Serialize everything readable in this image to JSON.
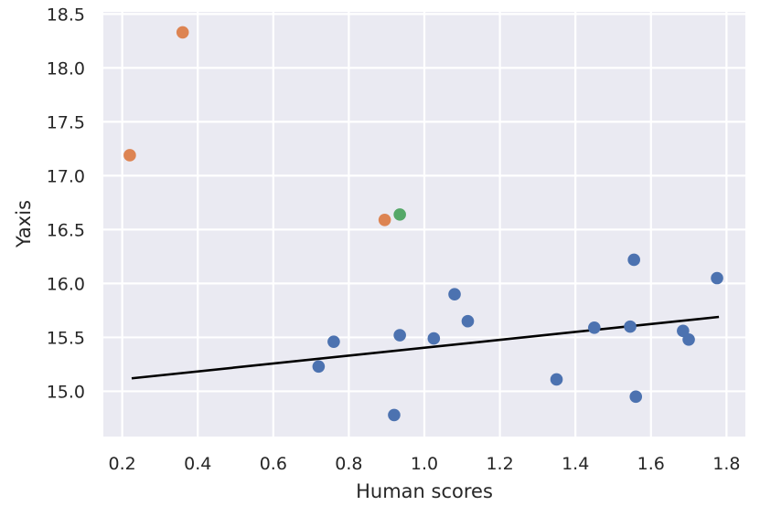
{
  "chart_data": {
    "type": "scatter",
    "title": "",
    "xlabel": "Human scores",
    "ylabel": "Yaxis",
    "xlim": [
      0.15,
      1.85
    ],
    "ylim": [
      14.58,
      18.52
    ],
    "xticks": [
      "0.2",
      "0.4",
      "0.6",
      "0.8",
      "1.0",
      "1.2",
      "1.4",
      "1.6",
      "1.8"
    ],
    "yticks": [
      "15.0",
      "15.5",
      "16.0",
      "16.5",
      "17.0",
      "17.5",
      "18.0",
      "18.5"
    ],
    "grid": true,
    "style": {
      "background": "#eaeaf2",
      "grid_color": "#ffffff"
    },
    "series": [
      {
        "color": "#4c72b0",
        "points": [
          [
            0.72,
            15.23
          ],
          [
            0.76,
            15.46
          ],
          [
            0.92,
            14.78
          ],
          [
            0.935,
            15.52
          ],
          [
            1.025,
            15.49
          ],
          [
            1.08,
            15.9
          ],
          [
            1.115,
            15.65
          ],
          [
            1.35,
            15.11
          ],
          [
            1.45,
            15.59
          ],
          [
            1.545,
            15.6
          ],
          [
            1.555,
            16.22
          ],
          [
            1.56,
            14.95
          ],
          [
            1.685,
            15.56
          ],
          [
            1.7,
            15.48
          ],
          [
            1.775,
            16.05
          ]
        ]
      },
      {
        "color": "#dd8452",
        "points": [
          [
            0.22,
            17.19
          ],
          [
            0.36,
            18.33
          ],
          [
            0.895,
            16.59
          ]
        ]
      },
      {
        "color": "#55a868",
        "points": [
          [
            0.935,
            16.64
          ]
        ]
      }
    ],
    "fit_line": {
      "color": "#000000",
      "points": [
        [
          0.225,
          15.12
        ],
        [
          1.78,
          15.69
        ]
      ]
    }
  }
}
